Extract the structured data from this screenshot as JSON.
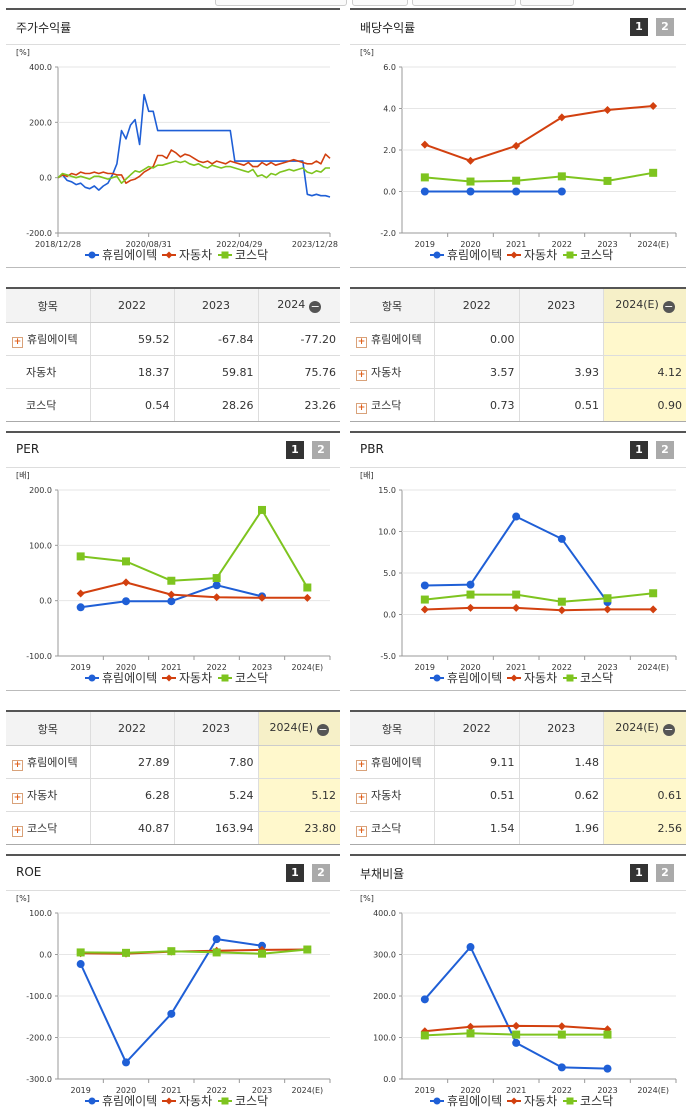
{
  "legend_names": [
    "휴림에이텍",
    "자동차",
    "코스닥"
  ],
  "colors": {
    "company": "#1f5fd6",
    "industry": "#d2400f",
    "index": "#7ec41f"
  },
  "pager": {
    "one": "1",
    "two": "2"
  },
  "tables": {
    "returns": {
      "columns": [
        "항목",
        "2022",
        "2023",
        "2024"
      ],
      "rows": [
        {
          "name": "휴림에이텍",
          "values": [
            "59.52",
            "-67.84",
            "-77.20"
          ]
        },
        {
          "name": "자동차",
          "values": [
            "18.37",
            "59.81",
            "75.76"
          ]
        },
        {
          "name": "코스닥",
          "values": [
            "0.54",
            "28.26",
            "23.26"
          ]
        }
      ]
    },
    "dividend": {
      "columns": [
        "항목",
        "2022",
        "2023",
        "2024(E)"
      ],
      "rows": [
        {
          "name": "휴림에이텍",
          "values": [
            "0.00",
            "",
            ""
          ]
        },
        {
          "name": "자동차",
          "values": [
            "3.57",
            "3.93",
            "4.12"
          ]
        },
        {
          "name": "코스닥",
          "values": [
            "0.73",
            "0.51",
            "0.90"
          ]
        }
      ]
    },
    "per": {
      "columns": [
        "항목",
        "2022",
        "2023",
        "2024(E)"
      ],
      "rows": [
        {
          "name": "휴림에이텍",
          "values": [
            "27.89",
            "7.80",
            ""
          ]
        },
        {
          "name": "자동차",
          "values": [
            "6.28",
            "5.24",
            "5.12"
          ]
        },
        {
          "name": "코스닥",
          "values": [
            "40.87",
            "163.94",
            "23.80"
          ]
        }
      ]
    },
    "pbr": {
      "columns": [
        "항목",
        "2022",
        "2023",
        "2024(E)"
      ],
      "rows": [
        {
          "name": "휴림에이텍",
          "values": [
            "9.11",
            "1.48",
            ""
          ]
        },
        {
          "name": "자동차",
          "values": [
            "0.51",
            "0.62",
            "0.61"
          ]
        },
        {
          "name": "코스닥",
          "values": [
            "1.54",
            "1.96",
            "2.56"
          ]
        }
      ]
    }
  },
  "chart_data": [
    {
      "id": "returns",
      "type": "line",
      "title": "주가수익률",
      "unit": "[%]",
      "ylim": [
        -200,
        400
      ],
      "yticks": [
        -200,
        0,
        200,
        400
      ],
      "ytick_decimals": 1,
      "x_range": [
        0,
        60
      ],
      "xtick_positions": [
        0,
        20,
        40,
        60
      ],
      "xtick_labels": [
        "2018/12/28",
        "2020/08/31",
        "2022/04/29",
        "2023/12/28"
      ],
      "markers": false,
      "series": [
        {
          "name": "휴림에이텍",
          "color": "#1f5fd6",
          "values": [
            0,
            10,
            -10,
            -15,
            -25,
            -20,
            -35,
            -40,
            -30,
            -45,
            -30,
            -20,
            10,
            50,
            170,
            140,
            190,
            210,
            120,
            300,
            240,
            240,
            170,
            170,
            170,
            170,
            170,
            170,
            170,
            170,
            170,
            170,
            170,
            170,
            170,
            170,
            170,
            170,
            170,
            60,
            60,
            60,
            60,
            60,
            60,
            60,
            60,
            60,
            60,
            60,
            60,
            60,
            60,
            60,
            60,
            -60,
            -65,
            -60,
            -65,
            -65,
            -70
          ]
        },
        {
          "name": "자동차",
          "color": "#d2400f",
          "values": [
            0,
            10,
            5,
            15,
            10,
            20,
            15,
            15,
            20,
            15,
            20,
            15,
            15,
            10,
            10,
            -20,
            -10,
            -5,
            5,
            20,
            30,
            40,
            80,
            80,
            70,
            100,
            90,
            75,
            85,
            80,
            70,
            60,
            55,
            60,
            50,
            60,
            55,
            50,
            60,
            55,
            50,
            45,
            55,
            40,
            40,
            55,
            45,
            55,
            45,
            50,
            55,
            60,
            65,
            60,
            55,
            50,
            50,
            60,
            50,
            85,
            70
          ]
        },
        {
          "name": "코스닥",
          "color": "#7ec41f",
          "values": [
            0,
            15,
            10,
            5,
            0,
            5,
            0,
            -5,
            5,
            5,
            0,
            -5,
            0,
            5,
            -20,
            -5,
            10,
            25,
            20,
            30,
            40,
            35,
            45,
            45,
            50,
            55,
            60,
            55,
            60,
            50,
            45,
            50,
            40,
            35,
            45,
            40,
            35,
            40,
            40,
            35,
            30,
            25,
            20,
            30,
            5,
            10,
            0,
            15,
            10,
            20,
            25,
            30,
            25,
            30,
            35,
            20,
            15,
            25,
            20,
            35,
            35
          ]
        }
      ]
    },
    {
      "id": "dividend",
      "type": "line",
      "title": "배당수익률",
      "unit": "[%]",
      "ylim": [
        -2,
        6
      ],
      "yticks": [
        -2,
        0,
        2,
        4,
        6
      ],
      "ytick_decimals": 1,
      "categories": [
        "2019",
        "2020",
        "2021",
        "2022",
        "2023",
        "2024(E)"
      ],
      "markers": true,
      "series": [
        {
          "name": "휴림에이텍",
          "color": "#1f5fd6",
          "values": [
            0,
            0,
            0,
            0,
            null,
            null
          ]
        },
        {
          "name": "자동차",
          "color": "#d2400f",
          "values": [
            2.26,
            1.48,
            2.2,
            3.57,
            3.93,
            4.12
          ]
        },
        {
          "name": "코스닥",
          "color": "#7ec41f",
          "values": [
            0.68,
            0.48,
            0.52,
            0.73,
            0.51,
            0.9
          ]
        }
      ]
    },
    {
      "id": "per",
      "type": "line",
      "title": "PER",
      "unit": "[배]",
      "ylim": [
        -100,
        200
      ],
      "yticks": [
        -100,
        0,
        100,
        200
      ],
      "ytick_decimals": 1,
      "categories": [
        "2019",
        "2020",
        "2021",
        "2022",
        "2023",
        "2024(E)"
      ],
      "markers": true,
      "series": [
        {
          "name": "휴림에이텍",
          "color": "#1f5fd6",
          "values": [
            -12,
            -1,
            -1,
            27.89,
            7.8,
            null
          ]
        },
        {
          "name": "자동차",
          "color": "#d2400f",
          "values": [
            13,
            33,
            11,
            6.28,
            5.24,
            5.12
          ]
        },
        {
          "name": "코스닥",
          "color": "#7ec41f",
          "values": [
            80,
            71,
            36,
            40.87,
            163.94,
            23.8
          ]
        }
      ]
    },
    {
      "id": "pbr",
      "type": "line",
      "title": "PBR",
      "unit": "[배]",
      "ylim": [
        -5,
        15
      ],
      "yticks": [
        -5,
        0,
        5,
        10,
        15
      ],
      "ytick_decimals": 1,
      "categories": [
        "2019",
        "2020",
        "2021",
        "2022",
        "2023",
        "2024(E)"
      ],
      "markers": true,
      "series": [
        {
          "name": "휴림에이텍",
          "color": "#1f5fd6",
          "values": [
            3.5,
            3.6,
            11.8,
            9.11,
            1.48,
            null
          ]
        },
        {
          "name": "자동차",
          "color": "#d2400f",
          "values": [
            0.6,
            0.8,
            0.8,
            0.51,
            0.62,
            0.61
          ]
        },
        {
          "name": "코스닥",
          "color": "#7ec41f",
          "values": [
            1.8,
            2.4,
            2.4,
            1.54,
            1.96,
            2.56
          ]
        }
      ]
    },
    {
      "id": "roe",
      "type": "line",
      "title": "ROE",
      "unit": "[%]",
      "ylim": [
        -300,
        100
      ],
      "yticks": [
        -300,
        -200,
        -100,
        0,
        100
      ],
      "ytick_decimals": 1,
      "categories": [
        "2019",
        "2020",
        "2021",
        "2022",
        "2023",
        "2024(E)"
      ],
      "markers": true,
      "series": [
        {
          "name": "휴림에이텍",
          "color": "#1f5fd6",
          "values": [
            -23,
            -260,
            -143,
            37,
            21,
            null
          ]
        },
        {
          "name": "자동차",
          "color": "#d2400f",
          "values": [
            3,
            2,
            7,
            9,
            11,
            12
          ]
        },
        {
          "name": "코스닥",
          "color": "#7ec41f",
          "values": [
            5,
            4,
            8,
            5,
            2,
            12
          ]
        }
      ]
    },
    {
      "id": "debt",
      "type": "line",
      "title": "부채비율",
      "unit": "[%]",
      "ylim": [
        0,
        400
      ],
      "yticks": [
        0,
        100,
        200,
        300,
        400
      ],
      "ytick_decimals": 1,
      "categories": [
        "2019",
        "2020",
        "2021",
        "2022",
        "2023",
        "2024(E)"
      ],
      "markers": true,
      "series": [
        {
          "name": "휴림에이텍",
          "color": "#1f5fd6",
          "values": [
            192,
            318,
            87,
            28,
            25,
            null
          ]
        },
        {
          "name": "자동차",
          "color": "#d2400f",
          "values": [
            115,
            126,
            128,
            127,
            120,
            null
          ]
        },
        {
          "name": "코스닥",
          "color": "#7ec41f",
          "values": [
            105,
            110,
            107,
            107,
            107,
            null
          ]
        }
      ]
    }
  ]
}
